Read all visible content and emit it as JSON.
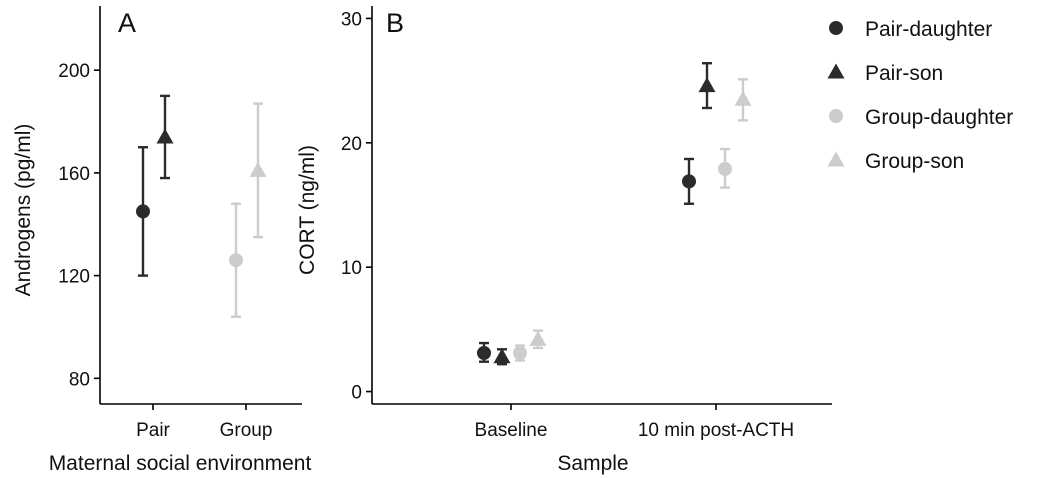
{
  "colors": {
    "dark": "#2b2b2b",
    "light": "#cccccc",
    "axis": "#000000"
  },
  "legend": {
    "placement": "right",
    "items": [
      {
        "label": "Pair-daughter",
        "shape": "circle",
        "color": "#2b2b2b"
      },
      {
        "label": "Pair-son",
        "shape": "triangle",
        "color": "#2b2b2b"
      },
      {
        "label": "Group-daughter",
        "shape": "circle",
        "color": "#cccccc"
      },
      {
        "label": "Group-son",
        "shape": "triangle",
        "color": "#cccccc"
      }
    ]
  },
  "chart_data": [
    {
      "type": "scatter",
      "panel": "A",
      "xlabel": "Maternal social environment",
      "ylabel": "Androgens (pg/ml)",
      "categories": [
        "Pair",
        "Group"
      ],
      "ylim": [
        70,
        225
      ],
      "yticks": [
        80,
        120,
        160,
        200
      ],
      "grid": false,
      "series": [
        {
          "key": "pair-daughter",
          "category": 0,
          "side": "left",
          "shape": "circle",
          "color": "#2b2b2b",
          "values": [
            {
              "y": 145,
              "low": 120,
              "high": 170
            }
          ]
        },
        {
          "key": "pair-son",
          "category": 0,
          "side": "right",
          "shape": "triangle",
          "color": "#2b2b2b",
          "values": [
            {
              "y": 174,
              "low": 158,
              "high": 190
            }
          ]
        },
        {
          "key": "group-daughter",
          "category": 1,
          "side": "left",
          "shape": "circle",
          "color": "#cccccc",
          "values": [
            {
              "y": 126,
              "low": 104,
              "high": 148
            }
          ]
        },
        {
          "key": "group-son",
          "category": 1,
          "side": "right",
          "shape": "triangle",
          "color": "#cccccc",
          "values": [
            {
              "y": 161,
              "low": 135,
              "high": 187
            }
          ]
        }
      ]
    },
    {
      "type": "scatter",
      "panel": "B",
      "xlabel": "Sample",
      "ylabel": "CORT (ng/ml)",
      "categories": [
        "Baseline",
        "10 min post-ACTH"
      ],
      "ylim": [
        -1,
        31
      ],
      "yticks": [
        0,
        10,
        20,
        30
      ],
      "grid": false,
      "series": [
        {
          "key": "pair-daughter",
          "shape": "circle",
          "color": "#2b2b2b",
          "offset": -1.5,
          "values": [
            {
              "y": 3.1,
              "low": 2.4,
              "high": 3.9
            },
            {
              "y": 16.9,
              "low": 15.1,
              "high": 18.7
            }
          ]
        },
        {
          "key": "pair-son",
          "shape": "triangle",
          "color": "#2b2b2b",
          "offset": -0.5,
          "values": [
            {
              "y": 2.8,
              "low": 2.2,
              "high": 3.4
            },
            {
              "y": 24.6,
              "low": 22.8,
              "high": 26.4
            }
          ]
        },
        {
          "key": "group-daughter",
          "shape": "circle",
          "color": "#cccccc",
          "offset": 0.5,
          "values": [
            {
              "y": 3.1,
              "low": 2.5,
              "high": 3.7
            },
            {
              "y": 17.9,
              "low": 16.4,
              "high": 19.5
            }
          ]
        },
        {
          "key": "group-son",
          "shape": "triangle",
          "color": "#cccccc",
          "offset": 1.5,
          "values": [
            {
              "y": 4.2,
              "low": 3.5,
              "high": 4.9
            },
            {
              "y": 23.5,
              "low": 21.8,
              "high": 25.1
            }
          ]
        }
      ]
    }
  ]
}
